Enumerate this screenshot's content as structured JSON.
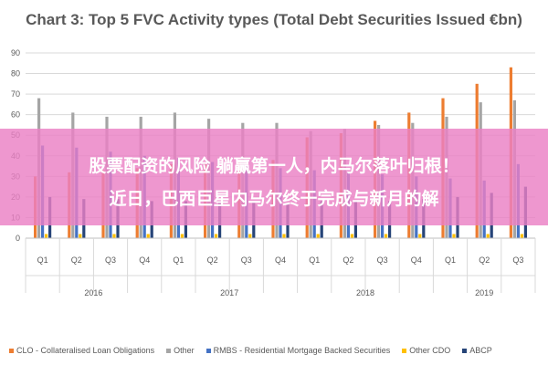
{
  "chart_data": {
    "type": "bar",
    "title": "Chart 3: Top 5 FVC Activity types (Total Debt Securities Issued €bn)",
    "ylim": [
      0,
      90
    ],
    "yticks": [
      0,
      10,
      20,
      30,
      40,
      50,
      60,
      70,
      80,
      90
    ],
    "grid": true,
    "legend_position": "bottom",
    "categories": [
      "Q1",
      "Q2",
      "Q3",
      "Q4",
      "Q1",
      "Q2",
      "Q3",
      "Q4",
      "Q1",
      "Q2",
      "Q3",
      "Q4",
      "Q1",
      "Q2",
      "Q3"
    ],
    "year_groups": [
      {
        "label": "2016",
        "quarters": 4
      },
      {
        "label": "2017",
        "quarters": 4
      },
      {
        "label": "2018",
        "quarters": 4
      },
      {
        "label": "2019",
        "quarters": 3
      }
    ],
    "series": [
      {
        "name": "CLO - Collateralised Loan Obligations",
        "color": "#ED7D31",
        "values": [
          30,
          32,
          33,
          34,
          36,
          36,
          37,
          38,
          49,
          51,
          57,
          61,
          68,
          75,
          83
        ]
      },
      {
        "name": "Other",
        "color": "#A5A5A5",
        "values": [
          68,
          61,
          59,
          59,
          61,
          58,
          56,
          56,
          52,
          53,
          55,
          56,
          59,
          66,
          67
        ]
      },
      {
        "name": "RMBS - Residential Mortgage Backed Securities",
        "color": "#4472C4",
        "values": [
          45,
          44,
          42,
          40,
          39,
          37,
          35,
          34,
          33,
          32,
          31,
          30,
          29,
          28,
          36
        ]
      },
      {
        "name": "Other CDO",
        "color": "#FFC000",
        "values": [
          2,
          2,
          2,
          2,
          2,
          2,
          2,
          2,
          2,
          2,
          2,
          2,
          2,
          2,
          2
        ]
      },
      {
        "name": "ABCP",
        "color": "#264478",
        "values": [
          20,
          19,
          19,
          18,
          18,
          18,
          18,
          17,
          18,
          18,
          18,
          19,
          20,
          22,
          25
        ]
      }
    ]
  },
  "overlay": {
    "line1": "股票配资的风险 躺赢第一人，内马尔落叶归根！",
    "line2": "近日，巴西巨星内马尔终于完成与新月的解",
    "color": "#EA80C4"
  }
}
